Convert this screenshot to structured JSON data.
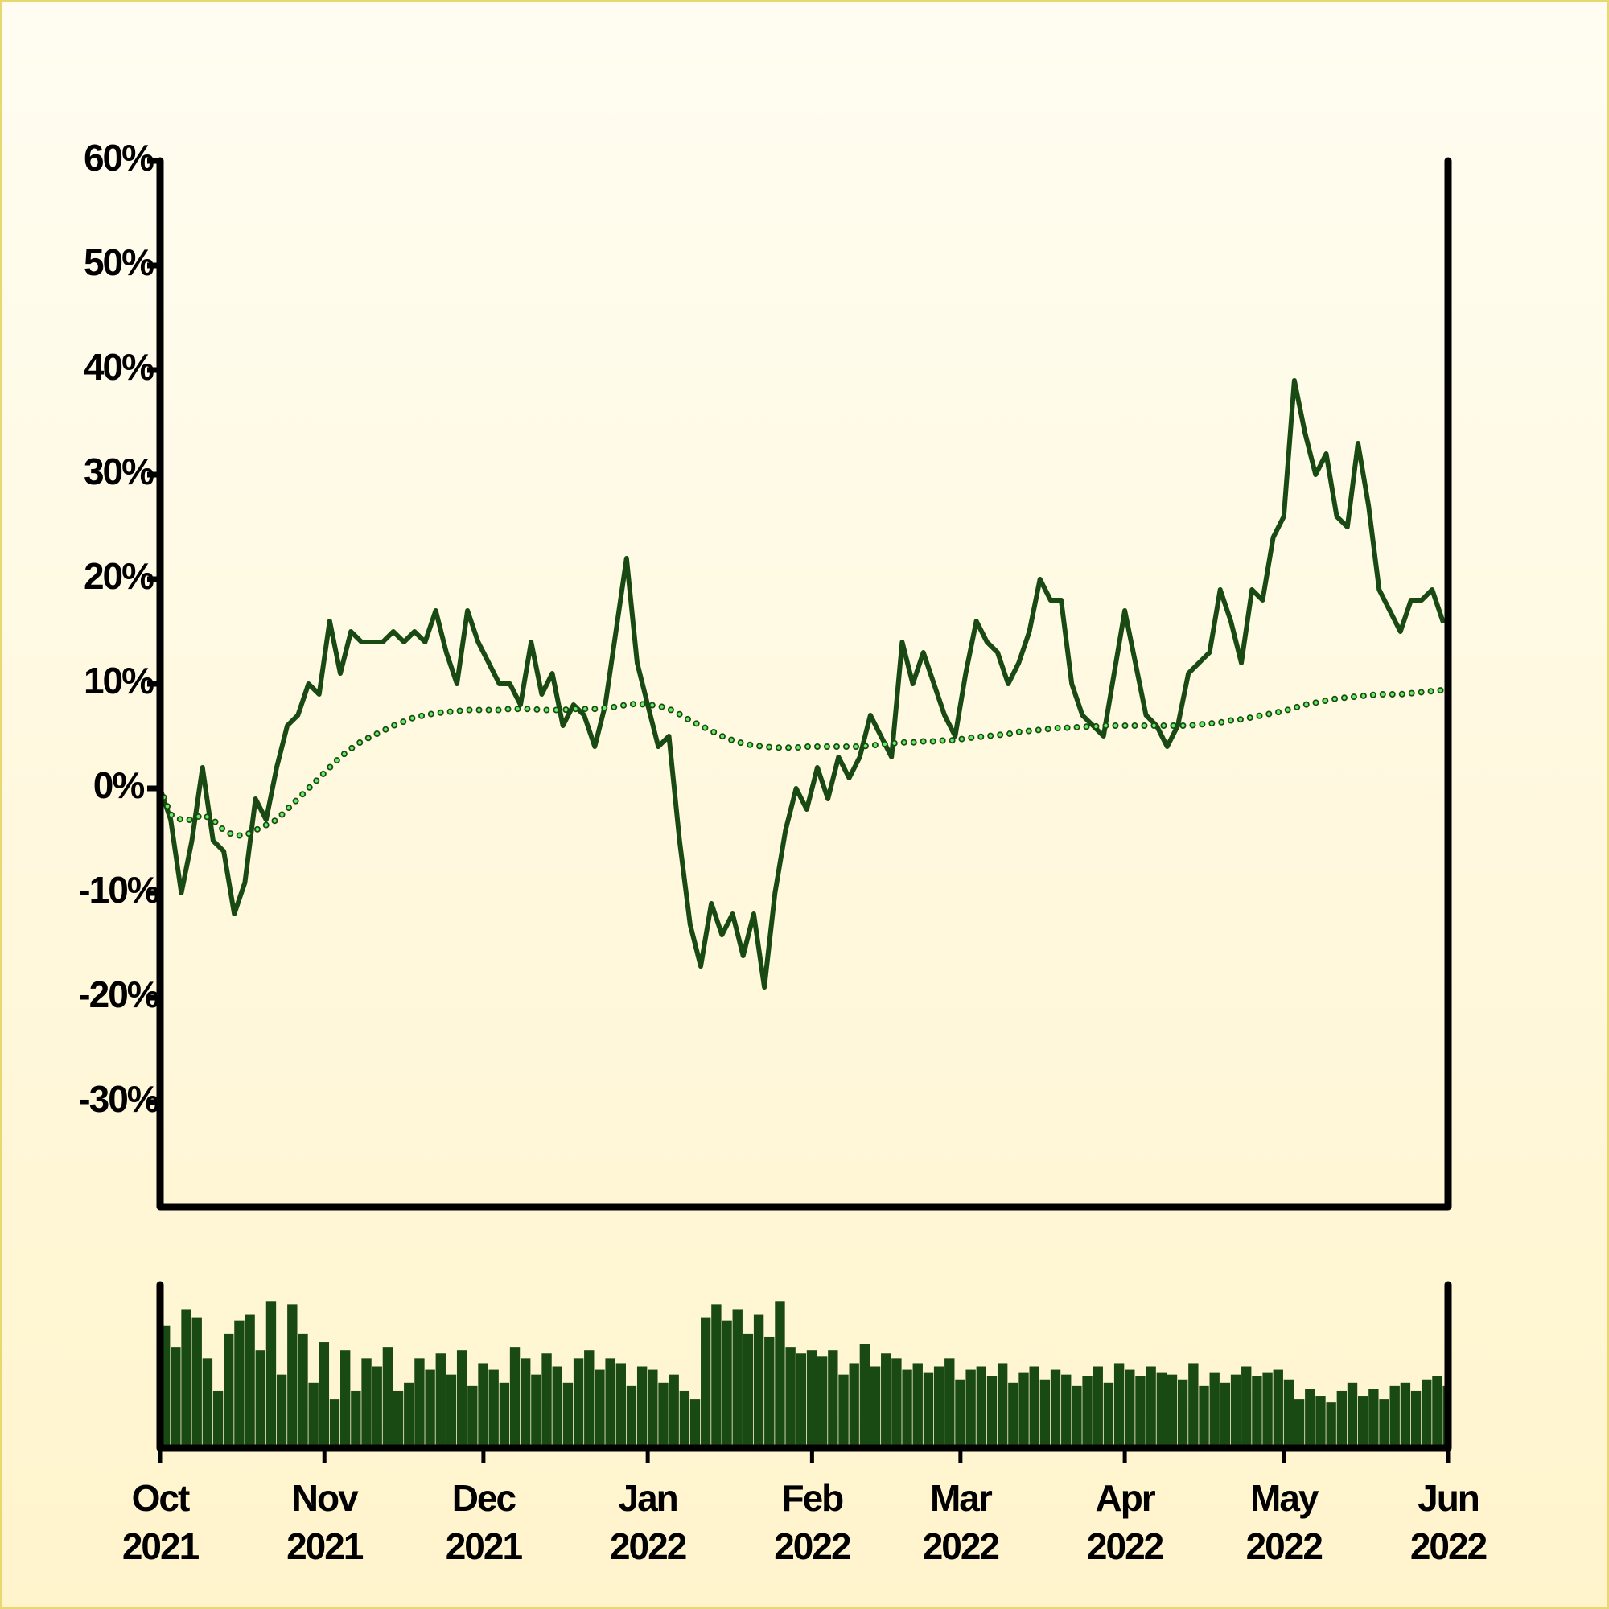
{
  "chart_data": [
    {
      "type": "line",
      "x": [
        0,
        2,
        4,
        6,
        8,
        10,
        12,
        14,
        16,
        18,
        20,
        22,
        24,
        26,
        28,
        30,
        32,
        34,
        36,
        38,
        40,
        42,
        44,
        46,
        48,
        50,
        52,
        54,
        56,
        58,
        60,
        62,
        64,
        66,
        68,
        70,
        72,
        74,
        76,
        78,
        80,
        82,
        84,
        86,
        88,
        90,
        92,
        94,
        96,
        98,
        100,
        102,
        104,
        106,
        108,
        110,
        112,
        114,
        116,
        118,
        120,
        122,
        124,
        126,
        128,
        130,
        132,
        134,
        136,
        138,
        140,
        142,
        144,
        146,
        148,
        150,
        152,
        154,
        156,
        158,
        160,
        162,
        164,
        166,
        168,
        170,
        172,
        174,
        176,
        178,
        180,
        182,
        184,
        186,
        188,
        190,
        192,
        194,
        196,
        198,
        200,
        202,
        204,
        206,
        208,
        210,
        212,
        214,
        216,
        218,
        220,
        222,
        224,
        226,
        228,
        230,
        232,
        234,
        236,
        238,
        240,
        242
      ],
      "xlim": [
        0,
        243
      ],
      "ylim": [
        -40,
        60
      ],
      "yticks": [
        {
          "value": -30,
          "label": "-30%"
        },
        {
          "value": -20,
          "label": "-20%"
        },
        {
          "value": -10,
          "label": "-10%"
        },
        {
          "value": 0,
          "label": "0%"
        },
        {
          "value": 10,
          "label": "10%"
        },
        {
          "value": 20,
          "label": "20%"
        },
        {
          "value": 30,
          "label": "30%"
        },
        {
          "value": 40,
          "label": "40%"
        },
        {
          "value": 50,
          "label": "50%"
        },
        {
          "value": 60,
          "label": "60%"
        }
      ],
      "series": [
        {
          "color": "#1a4a14",
          "style": "solid",
          "values": [
            0,
            -3,
            -10,
            -5,
            2,
            -5,
            -6,
            -12,
            -9,
            -1,
            -3,
            2,
            6,
            7,
            10,
            9,
            16,
            11,
            15,
            14,
            14,
            14,
            15,
            14,
            15,
            14,
            17,
            13,
            10,
            17,
            14,
            12,
            10,
            10,
            8,
            14,
            9,
            11,
            6,
            8,
            7,
            4,
            8,
            15,
            22,
            12,
            8,
            4,
            5,
            -5,
            -13,
            -17,
            -11,
            -14,
            -12,
            -16,
            -12,
            -19,
            -10,
            -4,
            0,
            -2,
            2,
            -1,
            3,
            1,
            3,
            7,
            5,
            3,
            14,
            10,
            13,
            10,
            7,
            5,
            11,
            16,
            14,
            13,
            10,
            12,
            15,
            20,
            18,
            18,
            10,
            7,
            6,
            5,
            11,
            17,
            12,
            7,
            6,
            4,
            6,
            11,
            12,
            13,
            19,
            16,
            12,
            19,
            18,
            24,
            26,
            39,
            34,
            30,
            32,
            26,
            25,
            33,
            27,
            19,
            17,
            15,
            18,
            18,
            19,
            16
          ]
        },
        {
          "color": "#66ee66",
          "style": "dotted",
          "values": [
            0,
            -2.5,
            -3,
            -3,
            -2.5,
            -3,
            -4,
            -4.5,
            -4.5,
            -4,
            -3.5,
            -3,
            -2,
            -1,
            0,
            1,
            2,
            3,
            3.8,
            4.5,
            5,
            5.5,
            6,
            6.4,
            6.8,
            7,
            7.2,
            7.3,
            7.4,
            7.5,
            7.5,
            7.5,
            7.5,
            7.6,
            7.6,
            7.6,
            7.5,
            7.5,
            7.5,
            7.6,
            7.6,
            7.6,
            7.7,
            7.8,
            8,
            8.1,
            8,
            7.9,
            7.6,
            7.1,
            6.5,
            6,
            5.5,
            5,
            4.6,
            4.3,
            4.1,
            4,
            3.9,
            3.9,
            3.9,
            4,
            4,
            4,
            4,
            4,
            4,
            4.1,
            4.2,
            4.3,
            4.4,
            4.4,
            4.5,
            4.5,
            4.6,
            4.6,
            4.8,
            4.9,
            5,
            5.1,
            5.2,
            5.4,
            5.5,
            5.6,
            5.7,
            5.8,
            5.8,
            5.9,
            5.9,
            6,
            6,
            6,
            6,
            6,
            6,
            6,
            6,
            6,
            6.1,
            6.2,
            6.3,
            6.5,
            6.6,
            6.8,
            7,
            7.2,
            7.4,
            7.7,
            8,
            8.2,
            8.4,
            8.6,
            8.7,
            8.8,
            8.9,
            9,
            9,
            9,
            9.1,
            9.2,
            9.3,
            9.4
          ]
        }
      ]
    },
    {
      "type": "bar",
      "x": [
        0,
        2,
        4,
        6,
        8,
        10,
        12,
        14,
        16,
        18,
        20,
        22,
        24,
        26,
        28,
        30,
        32,
        34,
        36,
        38,
        40,
        42,
        44,
        46,
        48,
        50,
        52,
        54,
        56,
        58,
        60,
        62,
        64,
        66,
        68,
        70,
        72,
        74,
        76,
        78,
        80,
        82,
        84,
        86,
        88,
        90,
        92,
        94,
        96,
        98,
        100,
        102,
        104,
        106,
        108,
        110,
        112,
        114,
        116,
        118,
        120,
        122,
        124,
        126,
        128,
        130,
        132,
        134,
        136,
        138,
        140,
        142,
        144,
        146,
        148,
        150,
        152,
        154,
        156,
        158,
        160,
        162,
        164,
        166,
        168,
        170,
        172,
        174,
        176,
        178,
        180,
        182,
        184,
        186,
        188,
        190,
        192,
        194,
        196,
        198,
        200,
        202,
        204,
        206,
        208,
        210,
        212,
        214,
        216,
        218,
        220,
        222,
        224,
        226,
        228,
        230,
        232,
        234,
        236,
        238,
        240,
        242
      ],
      "xlim": [
        0,
        243
      ],
      "xticks": [
        {
          "value": 0,
          "label": "Oct 2021"
        },
        {
          "value": 31,
          "label": "Nov 2021"
        },
        {
          "value": 61,
          "label": "Dec 2021"
        },
        {
          "value": 92,
          "label": "Jan 2022"
        },
        {
          "value": 123,
          "label": "Feb 2022"
        },
        {
          "value": 151,
          "label": "Mar 2022"
        },
        {
          "value": 182,
          "label": "Apr 2022"
        },
        {
          "value": 212,
          "label": "May 2022"
        },
        {
          "value": 243,
          "label": "Jun 2022"
        }
      ],
      "ylim": [
        0,
        100
      ],
      "color": "#1a4a14",
      "values": [
        75,
        62,
        85,
        80,
        55,
        35,
        70,
        78,
        82,
        60,
        90,
        45,
        88,
        70,
        40,
        65,
        30,
        60,
        35,
        55,
        50,
        62,
        35,
        40,
        55,
        48,
        58,
        45,
        60,
        38,
        52,
        48,
        40,
        62,
        55,
        45,
        58,
        50,
        40,
        55,
        60,
        48,
        55,
        52,
        38,
        50,
        48,
        40,
        45,
        35,
        30,
        80,
        88,
        78,
        85,
        70,
        82,
        68,
        90,
        62,
        58,
        60,
        56,
        60,
        45,
        52,
        64,
        50,
        58,
        55,
        48,
        52,
        46,
        50,
        55,
        42,
        48,
        50,
        44,
        52,
        40,
        46,
        50,
        42,
        48,
        45,
        38,
        44,
        50,
        40,
        52,
        48,
        44,
        50,
        46,
        45,
        42,
        52,
        38,
        46,
        40,
        45,
        50,
        44,
        46,
        48,
        42,
        30,
        36,
        32,
        28,
        35,
        40,
        32,
        36,
        30,
        38,
        40,
        35,
        42,
        44,
        38
      ]
    }
  ]
}
